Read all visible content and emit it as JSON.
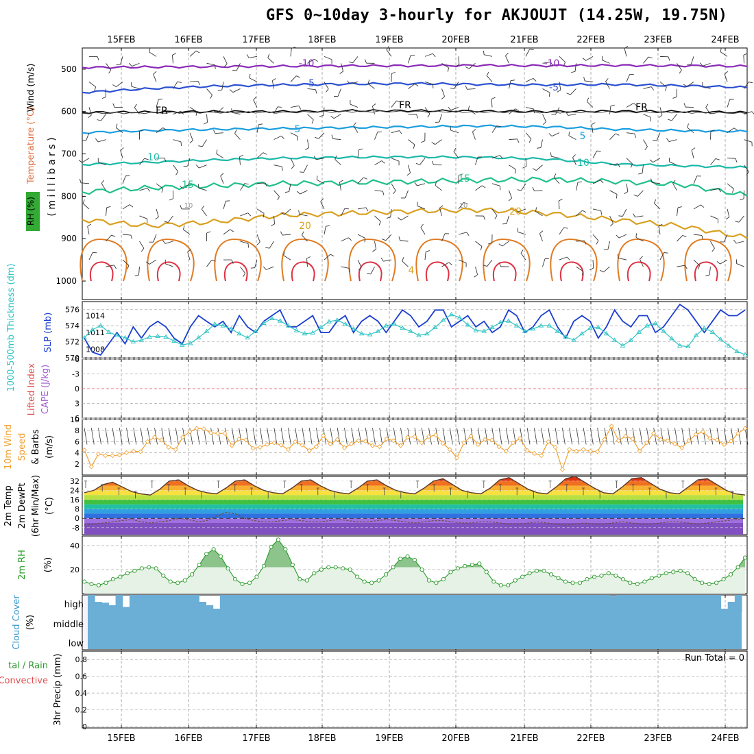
{
  "title": "GFS 0~10day 3-hourly for AKJOUJT (14.25W, 19.75N)",
  "dates": [
    "15FEB",
    "16FEB",
    "17FEB",
    "18FEB",
    "19FEB",
    "20FEB",
    "21FEB",
    "22FEB",
    "23FEB",
    "24FEB"
  ],
  "colors": {
    "slp": "#1a3ecf",
    "thickness": "#2ec4c4",
    "wind10m": "#f0a030",
    "barb": "#333333",
    "rh2m_line": "#2a9a2a",
    "rh2m_fill": "#e6f2e6",
    "rh2m_peak": "#8cc48c",
    "cloud": "#6baed6",
    "lifted_zero": "#e05050",
    "t_hot1": "#e03010",
    "t_hot2": "#f07020",
    "t_warm1": "#f8b030",
    "t_warm2": "#f8e040",
    "t_mild1": "#b8e040",
    "t_mild2": "#40c040",
    "t_cool1": "#20c0a0",
    "t_cool2": "#30a0e0",
    "t_cold1": "#3070e0",
    "t_cold2": "#a070e0",
    "t_cold3": "#8050c0",
    "c_m10": "#8a2ab8",
    "c_m5": "#2a50d0",
    "c_fr": "#000000",
    "c_5": "#1a9ee0",
    "c_10": "#1ab8a8",
    "c_15": "#20c08a",
    "c_20": "#d8a020",
    "c_25": "#e07a20",
    "c_30": "#e03040"
  },
  "panels": {
    "upper": {
      "ylabel_wind": "Wind (m/s)",
      "ylabel_temp": "Temperature (°C)",
      "ylabel_rh": "RH (%)",
      "ylabel_pressure": "( m i l l i b a r s )",
      "pressure_ticks": [
        "500",
        "600",
        "700",
        "800",
        "900",
        "1000"
      ],
      "contour_labels": [
        "-10",
        "-10",
        "-5",
        "-5",
        "FR",
        "FR",
        "FR",
        "5",
        "5",
        "10",
        "10",
        "15",
        "15",
        "20",
        "20",
        "10",
        "10",
        "4"
      ]
    },
    "slp": {
      "ylabel_thick": "1000-500mb Thickness (dm)",
      "ylabel_slp": "SLP (mb)",
      "left_ticks": [
        "576",
        "574",
        "572",
        "570"
      ],
      "right_ticks": [
        "1014",
        "1011",
        "1008"
      ]
    },
    "cape": {
      "ylabel_li": "Lifted Index",
      "ylabel_cape": "CAPE (J/kg)",
      "ticks": [
        "-6",
        "-3",
        "0",
        "3",
        "6"
      ]
    },
    "wind10": {
      "ylabel_a": "10m Wind",
      "ylabel_b": "Speed",
      "ylabel_c": "& Barbs",
      "ylabel_d": "(m/s)",
      "ticks": [
        "10",
        "8",
        "6",
        "4",
        "2"
      ]
    },
    "temp2m": {
      "ylabel_a": "2m Temp",
      "ylabel_b": "2m DewPt",
      "ylabel_c": "(6hr Min/Max)",
      "ylabel_d": "(°C)",
      "ticks": [
        "32",
        "24",
        "16",
        "8",
        "0",
        "-8"
      ]
    },
    "rh2m": {
      "ylabel_a": "2m RH",
      "ylabel_b": "(%)",
      "ticks": [
        "40",
        "20"
      ]
    },
    "cloud": {
      "ylabel_a": "Cloud Cover",
      "ylabel_b": "(%)",
      "levels": [
        "high",
        "middle",
        "low"
      ]
    },
    "precip": {
      "ylabel_a": "tal / Rain",
      "ylabel_b": "Convective",
      "ylabel_c": "3hr Precip (mm)",
      "ticks": [
        "0.8",
        "0.6",
        "0.4",
        "0.2",
        "0"
      ],
      "run_total": "Run Total = 0"
    }
  },
  "chart_data": [
    {
      "type": "line",
      "name": "upper-air cross section",
      "x_dates": [
        "15FEB",
        "16FEB",
        "17FEB",
        "18FEB",
        "19FEB",
        "20FEB",
        "21FEB",
        "22FEB",
        "23FEB",
        "24FEB"
      ],
      "ylabel": "millibars",
      "ylim": [
        1000,
        450
      ],
      "contours_pressure_mb": {
        "-10": [
          496,
          495,
          494,
          493,
          492,
          492,
          491,
          492,
          491,
          492,
          493
        ],
        "-5": [
          555,
          546,
          540,
          537,
          535,
          534,
          536,
          537,
          536,
          539,
          543
        ],
        "FR": [
          602,
          601,
          600,
          600,
          598,
          598,
          599,
          600,
          599,
          600,
          602
        ],
        "5": [
          650,
          645,
          642,
          640,
          638,
          636,
          634,
          636,
          642,
          645,
          647
        ],
        "10": [
          725,
          720,
          714,
          710,
          708,
          707,
          708,
          712,
          724,
          728,
          732
        ],
        "15": [
          790,
          780,
          775,
          770,
          768,
          765,
          762,
          760,
          765,
          772,
          798
        ],
        "20": [
          855,
          870,
          860,
          845,
          840,
          835,
          832,
          840,
          855,
          870,
          898
        ]
      }
    },
    {
      "type": "line",
      "title": "",
      "ylabel": "SLP (mb)",
      "ylim": [
        1006.5,
        1016.5
      ],
      "series": [
        {
          "name": "SLP (mb)",
          "values": [
            1010,
            1007.5,
            1007,
            1009,
            1011,
            1009,
            1012,
            1010,
            1012,
            1013,
            1012,
            1010,
            1009,
            1012,
            1014,
            1013,
            1012,
            1013,
            1011,
            1014,
            1012,
            1011,
            1013,
            1014,
            1015,
            1012,
            1012,
            1013,
            1014,
            1011,
            1011,
            1013,
            1014,
            1011,
            1013,
            1014,
            1013,
            1011,
            1013,
            1015,
            1014,
            1012,
            1013,
            1015,
            1015,
            1012,
            1013,
            1014,
            1012,
            1013,
            1011,
            1012,
            1015,
            1014,
            1011,
            1012,
            1014,
            1015,
            1012,
            1010,
            1013,
            1014,
            1013,
            1010,
            1012,
            1015,
            1013,
            1012,
            1014,
            1014,
            1011,
            1012,
            1014,
            1016,
            1015,
            1013,
            1011,
            1013,
            1015,
            1014,
            1014,
            1015
          ]
        }
      ]
    },
    {
      "type": "line",
      "title": "",
      "ylabel": "1000-500mb Thickness (dm)",
      "ylim": [
        570,
        577
      ],
      "series": [
        {
          "name": "1000-500mb Thickness (dm)",
          "values": [
            572.5,
            573.5,
            574,
            573.2,
            572.8,
            572.5,
            572.0,
            572.2,
            572.6,
            572.7,
            572.6,
            572.1,
            571.6,
            571.8,
            572.5,
            573.3,
            574.2,
            574.0,
            573.6,
            573.0,
            572.5,
            573.3,
            574.3,
            574.9,
            574.6,
            574.0,
            573.4,
            573.0,
            573.1,
            573.8,
            574.5,
            574.7,
            574.2,
            573.6,
            573.0,
            572.9,
            573.3,
            574.0,
            574.2,
            573.7,
            573.3,
            572.8,
            573.0,
            573.8,
            574.7,
            575.4,
            575.0,
            574.1,
            573.4,
            573.3,
            573.8,
            574.4,
            574.6,
            574.0,
            573.3,
            573.6,
            574.0,
            574.0,
            573.3,
            572.6,
            572.2,
            573.0,
            573.7,
            573.8,
            573.0,
            572.2,
            571.5,
            572.2,
            573.2,
            574.0,
            574.3,
            573.3,
            572.4,
            571.5,
            571.4,
            572.8,
            573.7,
            573.2,
            572.3,
            571.5,
            570.8,
            570.4
          ]
        }
      ]
    },
    {
      "type": "line",
      "title": "",
      "ylabel": "(m/s)",
      "ylim": [
        0,
        10
      ],
      "series": [
        {
          "name": "Speed",
          "values": [
            4.5,
            1.5,
            3.8,
            3.5,
            3.5,
            3.6,
            4,
            4.3,
            4.2,
            6,
            6.8,
            6.3,
            5,
            4.6,
            6.8,
            7.8,
            8.4,
            8.3,
            7.6,
            7.5,
            7.5,
            5.3,
            6.5,
            6.3,
            4.8,
            5,
            5.5,
            5.8,
            5.4,
            4.6,
            6,
            5.4,
            4.4,
            5.1,
            7.1,
            5.6,
            6.4,
            4.9,
            5.6,
            6.2,
            6.1,
            5.3,
            5.1,
            6.5,
            6.2,
            5.3,
            6.8,
            6.9,
            5.8,
            6.9,
            7.2,
            5.7,
            4.6,
            3.1,
            5.8,
            7,
            5.5,
            6.4,
            6.3,
            5.1,
            4.3,
            5.8,
            6.6,
            4.4,
            3.9,
            3.5,
            6,
            5,
            1,
            4.6,
            4.3,
            4.6,
            4.3,
            4.2,
            6.4,
            8.8,
            6.2,
            7,
            6.5,
            4.3,
            5.8,
            7.5,
            6.4,
            6.2,
            5.6,
            4.9,
            6.2,
            7.3,
            7.8,
            6.6,
            6.3,
            5.5,
            6.1,
            7.5,
            8.4
          ]
        }
      ]
    },
    {
      "type": "area",
      "title": "",
      "ylabel": "(°C)",
      "ylim": [
        -14,
        36
      ],
      "series": [
        {
          "name": "2m Temp",
          "values": [
            22,
            24,
            29,
            31,
            27,
            23,
            21,
            20,
            25,
            32,
            33,
            28,
            24,
            22,
            21,
            26,
            32,
            33,
            28,
            24,
            22,
            21,
            26,
            32,
            33,
            28,
            24,
            22,
            21,
            26,
            32,
            33,
            28,
            24,
            22,
            21,
            26,
            32,
            34,
            29,
            24,
            22,
            21,
            26,
            33,
            35,
            30,
            25,
            22,
            21,
            27,
            34,
            36,
            31,
            26,
            22,
            21,
            27,
            34,
            35,
            30,
            25,
            22,
            21,
            27,
            33,
            34,
            29,
            24,
            21,
            20
          ]
        },
        {
          "name": "2m DewPt",
          "values": [
            -6,
            -5,
            -4,
            -3,
            -2,
            -1,
            -3,
            -4,
            -3,
            -2,
            0,
            -1,
            -3,
            -2,
            2,
            5,
            4,
            0,
            -2,
            -3,
            -3,
            -2,
            -1,
            -2,
            -3,
            -3,
            -2,
            -1,
            -2,
            -3,
            -3,
            -2,
            -1,
            -2,
            -3,
            -4,
            -3,
            -2,
            -2,
            -3,
            -4,
            -4,
            -3,
            -3,
            -4,
            -5,
            -5,
            -4,
            -3,
            -4,
            -5,
            -6,
            -5,
            -4,
            -5,
            -5,
            -4,
            -3,
            -4,
            -5,
            -5,
            -4,
            -3,
            -3,
            -4,
            -5,
            -4,
            -3,
            -2,
            -1,
            0
          ]
        }
      ]
    },
    {
      "type": "area",
      "title": "",
      "ylabel": "(%)",
      "ylim": [
        0,
        48
      ],
      "series": [
        {
          "name": "2m RH",
          "values": [
            10,
            8,
            7,
            9,
            12,
            14,
            17,
            19,
            21,
            22,
            21,
            15,
            10,
            9,
            11,
            16,
            24,
            33,
            37,
            31,
            21,
            12,
            8,
            9,
            14,
            23,
            39,
            45,
            37,
            24,
            12,
            11,
            17,
            20,
            22,
            22,
            21,
            20,
            14,
            10,
            9,
            11,
            16,
            22,
            29,
            31,
            28,
            20,
            11,
            9,
            12,
            18,
            21,
            23,
            24,
            25,
            18,
            10,
            7,
            7,
            11,
            14,
            17,
            19,
            19,
            16,
            13,
            10,
            9,
            9,
            12,
            14,
            15,
            17,
            15,
            12,
            9,
            8,
            10,
            13,
            15,
            17,
            18,
            19,
            17,
            12,
            9,
            8,
            9,
            12,
            16,
            22,
            30
          ]
        }
      ]
    },
    {
      "type": "area",
      "title": "",
      "ylabel": "(%)",
      "series": [
        {
          "name": "high",
          "values": [
            100,
            60,
            55,
            40,
            100,
            30,
            100,
            100,
            100,
            100,
            100,
            100,
            100,
            100,
            100,
            100,
            60,
            40,
            20,
            100,
            100,
            100,
            100,
            100,
            100,
            100,
            100,
            100,
            100,
            100,
            100,
            100,
            100,
            100,
            100,
            100,
            100,
            100,
            100,
            100,
            100,
            100,
            100,
            100,
            100,
            100,
            100,
            100,
            100,
            100,
            100,
            100,
            100,
            100,
            100,
            100,
            100,
            100,
            100,
            100,
            100,
            100,
            100,
            100,
            100,
            100,
            100,
            100,
            100,
            100,
            100,
            100,
            100,
            100,
            100,
            95,
            100,
            100,
            100,
            100,
            100,
            100,
            100,
            100,
            100,
            100,
            100,
            100,
            100,
            100,
            100,
            20,
            60,
            100
          ]
        },
        {
          "name": "middle",
          "values": [
            100
          ]
        },
        {
          "name": "low",
          "values": [
            100
          ]
        }
      ]
    },
    {
      "type": "bar",
      "title": "",
      "ylabel": "3hr Precip (mm)",
      "ylim": [
        0,
        0.9
      ],
      "series": [
        {
          "name": "3hr Precip (mm)",
          "values": [
            0
          ]
        }
      ]
    }
  ]
}
